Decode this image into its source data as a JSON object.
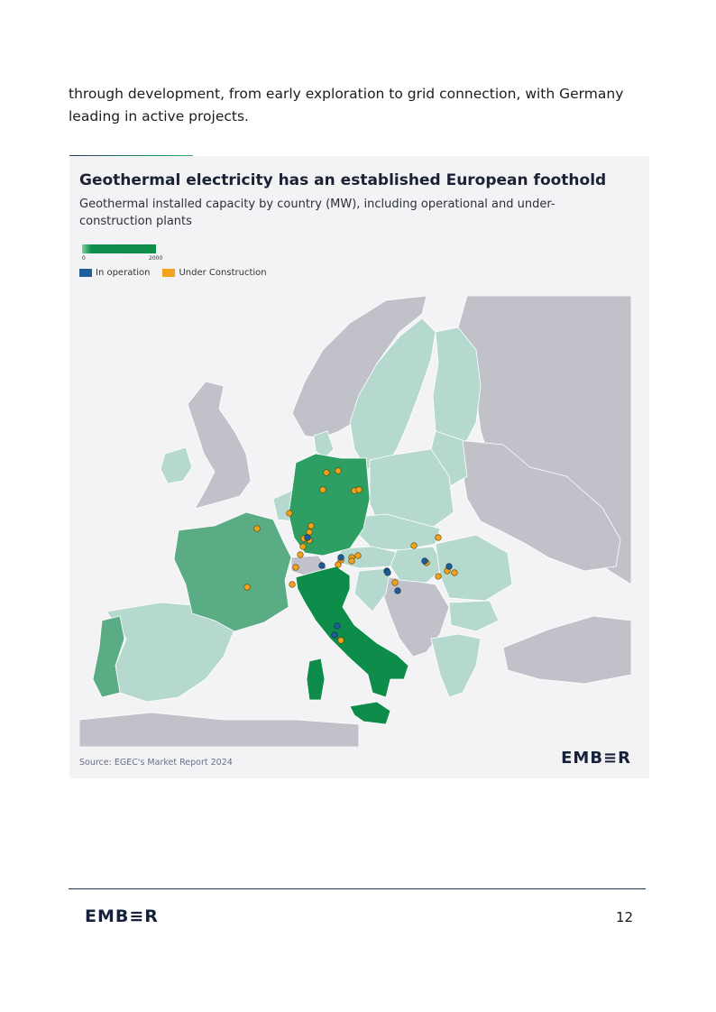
{
  "intro_text": "through development, from early exploration to grid connection, with Germany leading in active projects.",
  "chart": {
    "title": "Geothermal electricity has an established European foothold",
    "subtitle": "Geothermal installed capacity by country (MW), including operational and under-construction plants",
    "scale_min": "0",
    "scale_max": "2000",
    "legend": [
      {
        "label": "In operation",
        "color": "#1f5f99"
      },
      {
        "label": "Under Construction",
        "color": "#f2a21b"
      }
    ],
    "source": "Source: EGEC's Market Report 2024",
    "logo": "EMB≡R"
  },
  "chart_data": {
    "type": "map",
    "capacity_scale": [
      0,
      2000
    ],
    "colors": {
      "high": "#0e8d4a",
      "mid_high": "#3d9e6d",
      "mid": "#5aac84",
      "low": "#b5d9cf",
      "non_eu": "#c0c1c9",
      "sea": "#f3f3f6"
    }
  },
  "footer": {
    "logo": "EMB≡R",
    "page_number": "12"
  }
}
